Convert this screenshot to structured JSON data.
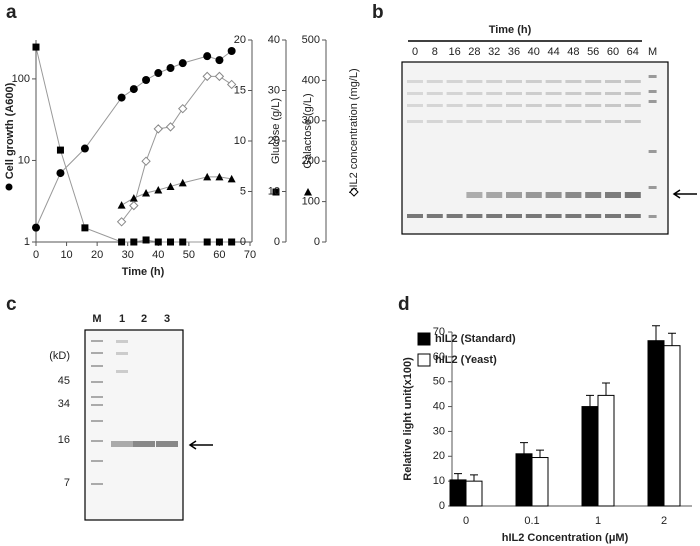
{
  "panel_labels": [
    "a",
    "b",
    "c",
    "d"
  ],
  "chart_data": [
    {
      "type": "line",
      "x_label": "Time (h)",
      "xlim": [
        0,
        70
      ],
      "xticks": [
        0,
        10,
        20,
        30,
        40,
        50,
        60,
        70
      ],
      "y_label": "Cell growth (A600)",
      "yscale": "log",
      "ylim": [
        1,
        300
      ],
      "yticks": [
        1,
        10,
        100
      ],
      "y2_label": "Glucose (g/L)",
      "y2lim": [
        0,
        20
      ],
      "y2ticks": [
        0,
        5,
        10,
        15,
        20
      ],
      "y3_label": "Galactose (g/L)",
      "y3lim": [
        0,
        40
      ],
      "y3ticks": [
        0,
        10,
        20,
        30,
        40
      ],
      "y4_label": "hIL2 concentration (mg/L)",
      "y4lim": [
        0,
        500
      ],
      "y4ticks": [
        0,
        100,
        200,
        300,
        400,
        500
      ],
      "line_color": "#999999",
      "series": [
        {
          "marker": "circle",
          "color": "#000000",
          "x": [
            0,
            8,
            16,
            28,
            32,
            36,
            40,
            44,
            48,
            56,
            60,
            64
          ],
          "values": [
            1.5,
            7,
            14,
            59,
            75,
            97,
            118,
            136,
            156,
            190,
            170,
            220
          ]
        },
        {
          "marker": "square",
          "color": "#000000",
          "axis": "y2",
          "x": [
            0,
            8,
            16,
            28,
            32,
            36,
            40,
            44,
            48,
            56,
            60,
            64
          ],
          "values": [
            19.3,
            9.1,
            1.4,
            0,
            0,
            0.2,
            0,
            0,
            0,
            0,
            0,
            0
          ]
        },
        {
          "marker": "triangle",
          "color": "#000000",
          "axis": "y3",
          "x": [
            28,
            32,
            36,
            40,
            44,
            48,
            56,
            60,
            64
          ],
          "values": [
            7.3,
            8.7,
            9.7,
            10.3,
            11,
            11.7,
            12.9,
            12.9,
            12.5
          ]
        },
        {
          "marker": "diamond",
          "color": "#888888",
          "axis": "y4",
          "x": [
            28,
            32,
            36,
            40,
            44,
            48,
            56,
            60,
            64
          ],
          "values": [
            50,
            90,
            200,
            280,
            285,
            330,
            410,
            410,
            390
          ]
        }
      ]
    },
    {
      "type": "bar",
      "y_label": "Relative light unit(x100)",
      "x_label": "hIL2 Concentration (μM)",
      "categories": [
        "0",
        "0.1",
        "1",
        "2"
      ],
      "ylim": [
        0,
        70
      ],
      "yticks": [
        0,
        10,
        20,
        30,
        40,
        50,
        60,
        70
      ],
      "legend": "top-left",
      "series": [
        {
          "name": "hIL2 (Standard)",
          "color": "#000000",
          "values": [
            10.5,
            21,
            40,
            66.5
          ],
          "errors": [
            2.5,
            4.5,
            4.5,
            6
          ]
        },
        {
          "name": "hIL2 (Yeast)",
          "color": "#ffffff",
          "values": [
            10,
            19.5,
            44.5,
            64.5
          ],
          "errors": [
            2.5,
            3,
            5,
            5
          ]
        }
      ]
    }
  ],
  "gel_b": {
    "title": "Time (h)",
    "lanes": [
      "0",
      "8",
      "16",
      "28",
      "32",
      "36",
      "40",
      "44",
      "48",
      "56",
      "60",
      "64",
      "M"
    ]
  },
  "gel_c": {
    "lanes": [
      "M",
      "1",
      "2",
      "3"
    ],
    "unit": "(kD)",
    "markers": [
      45,
      34,
      16,
      7
    ]
  }
}
